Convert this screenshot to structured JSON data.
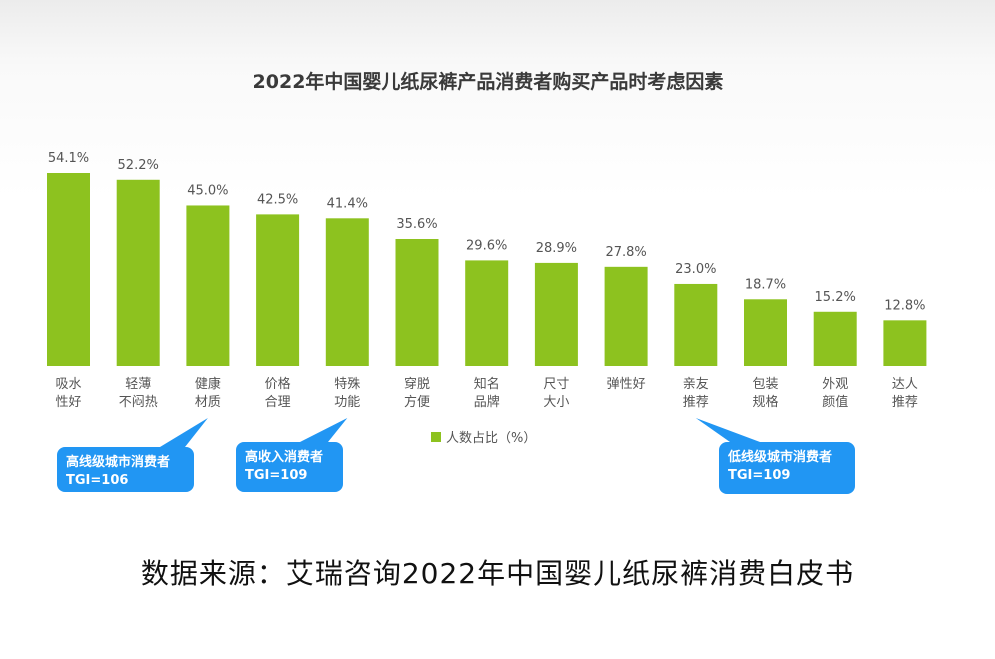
{
  "chart_data": {
    "type": "bar",
    "title": "2022年中国婴儿纸尿裤产品消费者购买产品时考虑因素",
    "categories": [
      [
        "吸水",
        "性好"
      ],
      [
        "轻薄",
        "不闷热"
      ],
      [
        "健康",
        "材质"
      ],
      [
        "价格",
        "合理"
      ],
      [
        "特殊",
        "功能"
      ],
      [
        "穿脱",
        "方便"
      ],
      [
        "知名",
        "品牌"
      ],
      [
        "尺寸",
        "大小"
      ],
      [
        "弹性好"
      ],
      [
        "亲友",
        "推荐"
      ],
      [
        "包装",
        "规格"
      ],
      [
        "外观",
        "颜值"
      ],
      [
        "达人",
        "推荐"
      ]
    ],
    "values": [
      54.1,
      52.2,
      45.0,
      42.5,
      41.4,
      35.6,
      29.6,
      28.9,
      27.8,
      23.0,
      18.7,
      15.2,
      12.8
    ],
    "value_labels": [
      "54.1%",
      "52.2%",
      "45.0%",
      "42.5%",
      "41.4%",
      "35.6%",
      "29.6%",
      "28.9%",
      "27.8%",
      "23.0%",
      "18.7%",
      "15.2%",
      "12.8%"
    ],
    "series_name": "人数占比（%）",
    "ylim": [
      0,
      54.1
    ],
    "bar_color": "#8dc21f",
    "callouts": [
      {
        "lines": [
          "高线级城市消费者",
          "TGI=106"
        ],
        "points_to": 2
      },
      {
        "lines": [
          "高收入消费者",
          "TGI=109"
        ],
        "points_to": 4
      },
      {
        "lines": [
          "低线级城市消费者",
          "TGI=109"
        ],
        "points_to": 9
      }
    ],
    "callout_color": "#2196f3"
  },
  "source": "数据来源：艾瑞咨询2022年中国婴儿纸尿裤消费白皮书"
}
